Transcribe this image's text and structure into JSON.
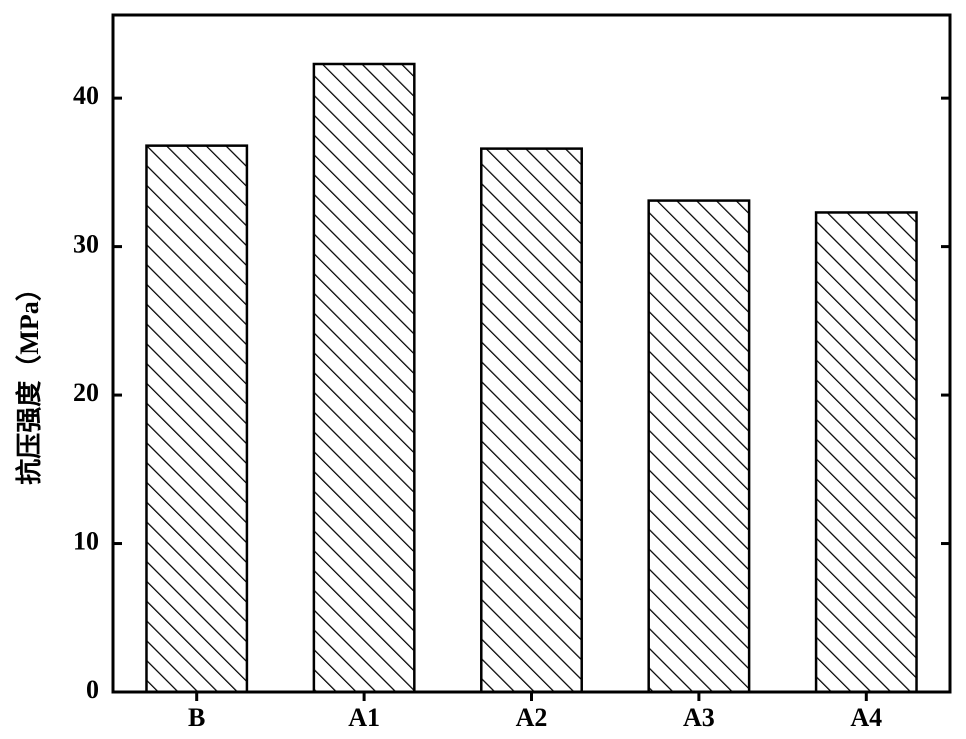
{
  "chart_data": {
    "type": "bar",
    "y_label": "抗压强度（MPa）",
    "categories": [
      "B",
      "A1",
      "A2",
      "A3",
      "A4"
    ],
    "values": [
      36.8,
      42.3,
      36.6,
      33.1,
      32.3
    ],
    "color": "#000000",
    "ylim": [
      0,
      45.6
    ],
    "yticks": [
      0,
      10,
      20,
      30,
      40
    ],
    "grid": false
  }
}
